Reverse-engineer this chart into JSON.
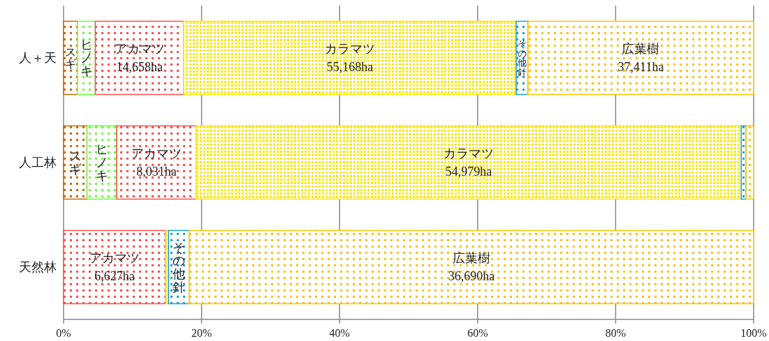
{
  "chart_data": {
    "type": "bar",
    "orientation": "horizontal",
    "stacked": true,
    "categories": [
      "人＋天",
      "人工林",
      "天然林"
    ],
    "xlim": [
      0,
      100
    ],
    "xticks": [
      {
        "value": 0,
        "label": "0%"
      },
      {
        "value": 20,
        "label": "20%"
      },
      {
        "value": 40,
        "label": "40%"
      },
      {
        "value": 60,
        "label": "60%"
      },
      {
        "value": 80,
        "label": "80%"
      },
      {
        "value": 100,
        "label": "100%"
      }
    ],
    "grid": "x",
    "series": [
      {
        "color": "#cc6600",
        "values": [
          2.0,
          3.4,
          0
        ],
        "value_labels": [
          "スギ",
          "スギ",
          null
        ]
      },
      {
        "color": "#66ff33",
        "values": [
          2.6,
          4.3,
          0
        ],
        "value_labels": [
          "ヒノキ",
          "ヒノキ",
          null
        ]
      },
      {
        "color": "#ff4d4d",
        "values": [
          12.8,
          11.5,
          14.8
        ],
        "value_labels": [
          "アカマツ 14,658ha",
          "アカマツ 8,031ha",
          "アカマツ 6,627ha"
        ]
      },
      {
        "color": "#ffe600",
        "values": [
          48.2,
          79.0,
          0.4
        ],
        "value_labels": [
          "カラマツ 55,168ha",
          "カラマツ 54,979ha",
          null
        ]
      },
      {
        "color": "#1a9ee0",
        "values": [
          1.7,
          0.7,
          3.0
        ],
        "value_labels": [
          "その他針",
          null,
          "その他針"
        ]
      },
      {
        "color": "#ffc000",
        "values": [
          32.7,
          1.1,
          81.8
        ],
        "value_labels": [
          "広葉樹 37,411ha",
          null,
          "広葉樹 36,690ha"
        ]
      }
    ]
  }
}
